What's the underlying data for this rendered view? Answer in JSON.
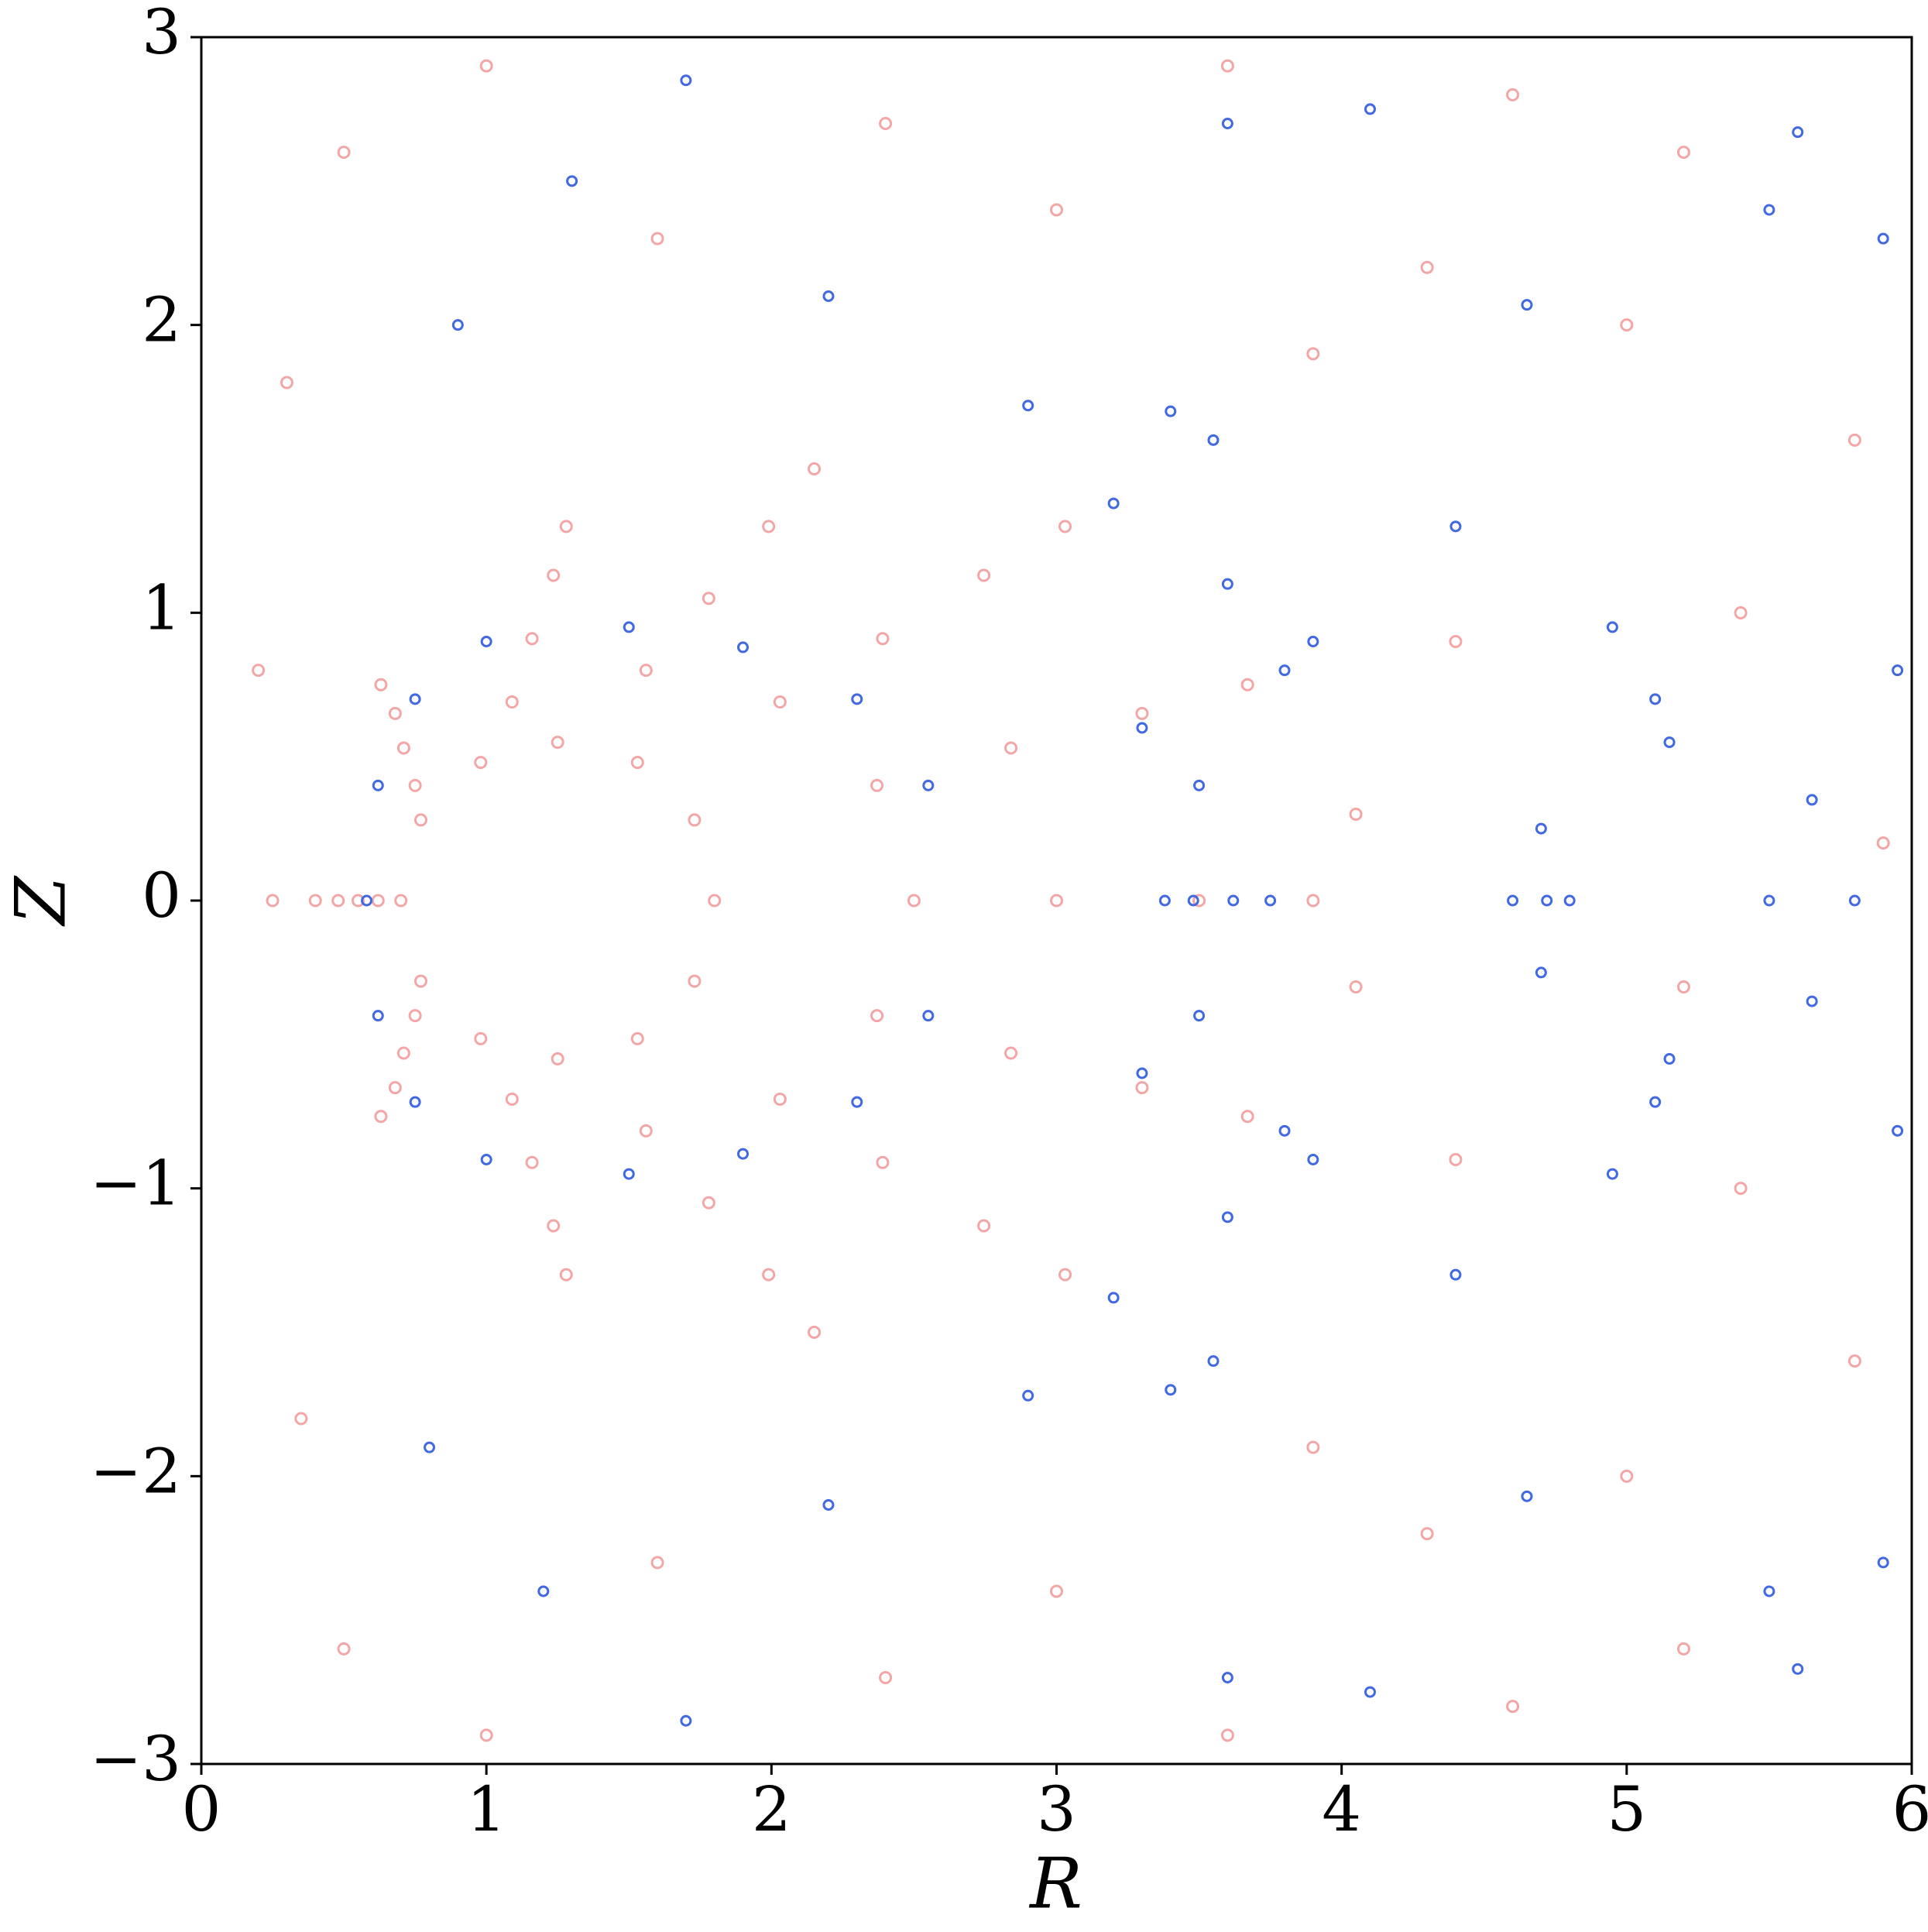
{
  "chart_data": {
    "type": "scatter",
    "xlabel": "R",
    "ylabel": "Z",
    "xlim": [
      0,
      6
    ],
    "ylim": [
      -3,
      3
    ],
    "xticks": [
      0,
      1,
      2,
      3,
      4,
      5,
      6
    ],
    "yticks": [
      {
        "value": -3,
        "label": "−3"
      },
      {
        "value": -2,
        "label": "−2"
      },
      {
        "value": -1,
        "label": "−1"
      },
      0,
      1,
      2,
      3
    ],
    "series": [
      {
        "color": "#f08080",
        "x": [
          1.8,
          1.73,
          1.53,
          1.25,
          0.98,
          0.77,
          0.7,
          0.77,
          0.98,
          1.25,
          1.53,
          1.73,
          2.5,
          2.37,
          2.03,
          1.56,
          1.09,
          0.75,
          0.62,
          0.75,
          1.09,
          1.56,
          2.03,
          2.37,
          3.0,
          2.84,
          2.39,
          1.78,
          1.16,
          0.71,
          0.55,
          0.71,
          1.16,
          1.78,
          2.39,
          2.84,
          3.5,
          3.3,
          2.745,
          1.99,
          1.235,
          0.68,
          0.48,
          0.68,
          1.235,
          1.99,
          2.745,
          3.3,
          3.9,
          3.67,
          3.03,
          2.15,
          1.28,
          0.63,
          0.4,
          0.63,
          1.28,
          2.15,
          3.03,
          3.67,
          0.25,
          0.3,
          0.35,
          0.5,
          0.5,
          1.0,
          1.0,
          1.6,
          1.6,
          2.4,
          2.4,
          3.0,
          3.0,
          3.6,
          3.6,
          4.3,
          4.3,
          4.6,
          4.6,
          5.2,
          5.2,
          5.8,
          5.8,
          5.4,
          5.4,
          4.4,
          4.4,
          4.05,
          4.05,
          5.9,
          5.2,
          5.0,
          5.0,
          3.9,
          3.9,
          0.2
        ],
        "y": [
          0,
          0.28,
          0.48,
          0.55,
          0.48,
          0.28,
          0,
          -0.28,
          -0.48,
          -0.55,
          -0.48,
          -0.28,
          0,
          0.4,
          0.69,
          0.8,
          0.69,
          0.4,
          0,
          -0.4,
          -0.69,
          -0.8,
          -0.69,
          -0.4,
          0,
          0.53,
          0.91,
          1.05,
          0.91,
          0.53,
          0,
          -0.53,
          -0.91,
          -1.05,
          -0.91,
          -0.53,
          0,
          0.65,
          1.13,
          1.3,
          1.13,
          0.65,
          0,
          -0.65,
          -1.13,
          -1.3,
          -1.13,
          -0.65,
          0,
          0.75,
          1.3,
          1.5,
          1.3,
          0.75,
          0,
          -0.75,
          -1.3,
          -1.5,
          -1.3,
          -0.75,
          0,
          1.8,
          -1.8,
          2.6,
          -2.6,
          2.9,
          -2.9,
          2.3,
          -2.3,
          2.7,
          -2.7,
          2.4,
          -2.4,
          2.9,
          -2.9,
          2.2,
          -2.2,
          2.8,
          -2.8,
          2.6,
          -2.6,
          1.6,
          -1.6,
          1.0,
          -1.0,
          0.9,
          -0.9,
          0.3,
          -0.3,
          0.2,
          -0.3,
          2.0,
          -2.0,
          1.9,
          -1.9,
          0.8
        ]
      },
      {
        "color": "#4169e1",
        "x": [
          0.58,
          0.62,
          0.75,
          1.0,
          0.62,
          0.75,
          1.0,
          1.5,
          1.9,
          2.3,
          2.55,
          1.5,
          1.9,
          2.3,
          2.55,
          3.5,
          3.62,
          3.5,
          3.38,
          3.48,
          3.3,
          3.75,
          3.3,
          4.7,
          4.8,
          4.7,
          4.6,
          4.72,
          5.65,
          5.8,
          5.65,
          5.5,
          3.2,
          3.6,
          3.9,
          3.8,
          3.2,
          3.6,
          3.9,
          3.8,
          4.4,
          5.1,
          5.15,
          4.95,
          4.4,
          5.1,
          5.15,
          4.95,
          3.4,
          2.9,
          3.55,
          3.4,
          2.9,
          3.55,
          3.6,
          4.1,
          5.5,
          5.9,
          5.6,
          4.65,
          3.6,
          4.1,
          5.5,
          5.9,
          5.6,
          4.65,
          0.9,
          1.3,
          1.7,
          0.8,
          1.2,
          1.7,
          2.2,
          2.2,
          5.95,
          5.95
        ],
        "y": [
          0,
          0.4,
          0.7,
          0.9,
          -0.4,
          -0.7,
          -0.9,
          0.95,
          0.88,
          0.7,
          0.4,
          -0.95,
          -0.88,
          -0.7,
          -0.4,
          0.4,
          0,
          -0.4,
          0,
          0,
          0.6,
          0,
          -0.6,
          0.25,
          0,
          -0.25,
          0,
          0,
          0.35,
          0,
          -0.35,
          0,
          1.38,
          1.1,
          0.9,
          0.8,
          -1.38,
          -1.1,
          -0.9,
          -0.8,
          1.3,
          0.7,
          0.55,
          0.95,
          -1.3,
          -0.7,
          -0.55,
          -0.95,
          1.7,
          1.72,
          1.6,
          -1.7,
          -1.72,
          -1.6,
          2.7,
          2.75,
          2.4,
          2.3,
          2.67,
          2.07,
          -2.7,
          -2.75,
          -2.4,
          -2.3,
          -2.67,
          -2.07,
          2.0,
          2.5,
          2.85,
          -1.9,
          -2.4,
          -2.85,
          2.1,
          -2.1,
          0.8,
          -0.8
        ]
      }
    ]
  }
}
